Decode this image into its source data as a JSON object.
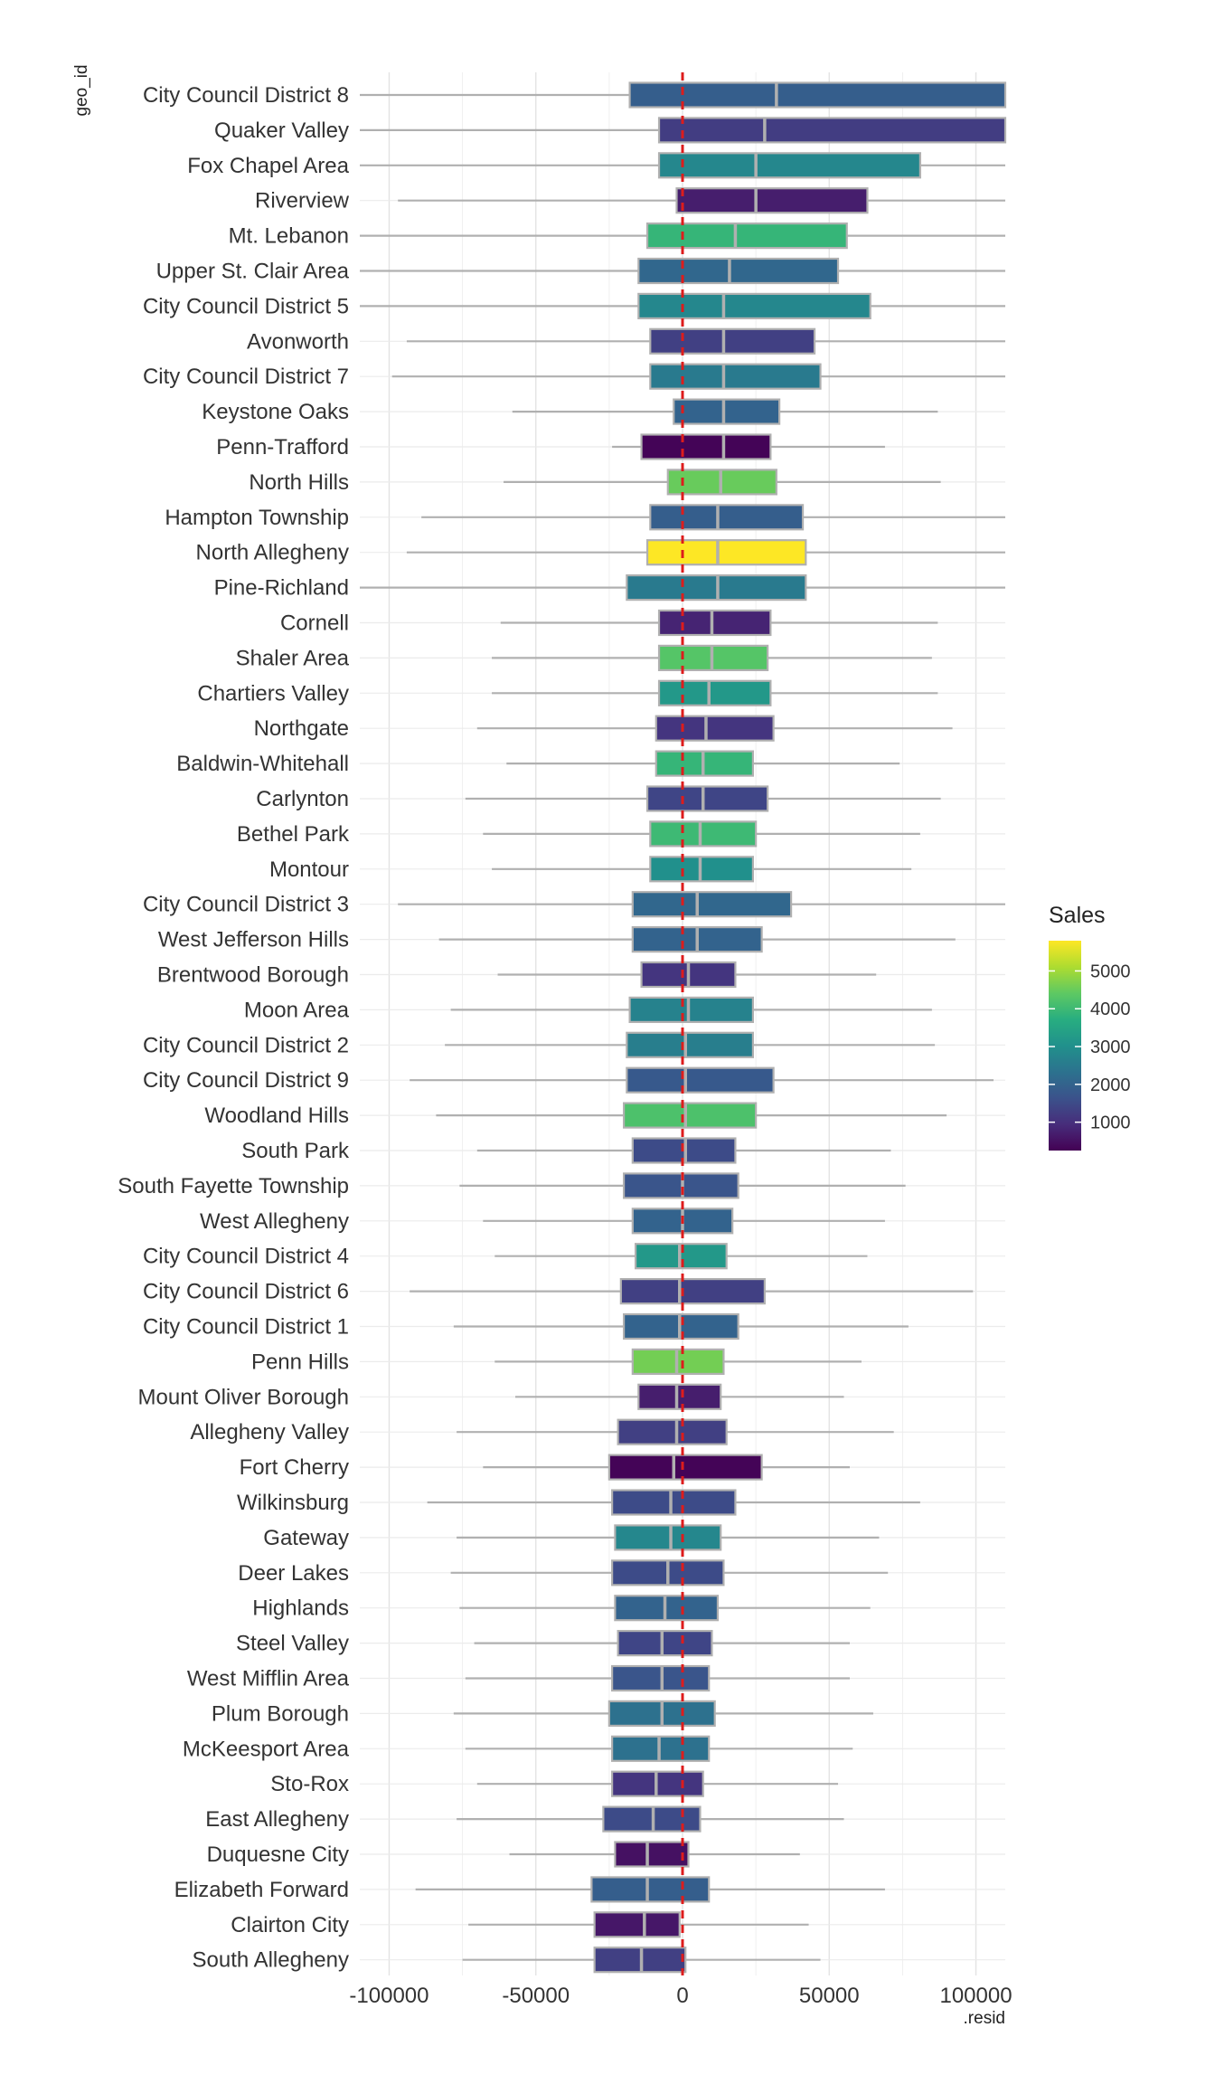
{
  "chart_data": {
    "type": "boxplot",
    "orientation": "horizontal",
    "ylabel": "geo_id",
    "xlabel": ".resid",
    "xlim": [
      -110000,
      110000
    ],
    "xticks": [
      -100000,
      -50000,
      0,
      50000,
      100000
    ],
    "xtick_labels": [
      "-100000",
      "-50000",
      "0",
      "50000",
      "100000"
    ],
    "reference_line": {
      "x": 0,
      "color": "#dd1c1c",
      "style": "dashed"
    },
    "legend": {
      "title": "Sales",
      "position": "right",
      "min": 250,
      "max": 5800,
      "ticks": [
        1000,
        2000,
        3000,
        4000,
        5000
      ],
      "tick_labels": [
        "1000",
        "2000",
        "3000",
        "4000",
        "5000"
      ],
      "palette": "viridis"
    },
    "grid": true,
    "colors": {
      "box_outline": "#b0b0b0",
      "whisker": "#b0b0b0",
      "median": "#b0b0b0",
      "grid": "#e6e6e6"
    },
    "categories": [
      "City Council District 8",
      "Quaker Valley",
      "Fox Chapel Area",
      "Riverview",
      "Mt. Lebanon",
      "Upper St. Clair Area",
      "City Council District 5",
      "Avonworth",
      "City Council District 7",
      "Keystone Oaks",
      "Penn-Trafford",
      "North Hills",
      "Hampton Township",
      "North Allegheny",
      "Pine-Richland",
      "Cornell",
      "Shaler Area",
      "Chartiers Valley",
      "Northgate",
      "Baldwin-Whitehall",
      "Carlynton",
      "Bethel Park",
      "Montour",
      "City Council District 3",
      "West Jefferson Hills",
      "Brentwood Borough",
      "Moon Area",
      "City Council District 2",
      "City Council District 9",
      "Woodland Hills",
      "South Park",
      "South Fayette Township",
      "West Allegheny",
      "City Council District 4",
      "City Council District 6",
      "City Council District 1",
      "Penn Hills",
      "Mount Oliver Borough",
      "Allegheny Valley",
      "Fort Cherry",
      "Wilkinsburg",
      "Gateway",
      "Deer Lakes",
      "Highlands",
      "Steel Valley",
      "West Mifflin Area",
      "Plum Borough",
      "McKeesport Area",
      "Sto-Rox",
      "East Allegheny",
      "Duquesne City",
      "Elizabeth Forward",
      "Clairton City",
      "South Allegheny"
    ],
    "series": [
      {
        "whisker_low": -110000,
        "q1": -18000,
        "median": 32000,
        "q3": 110000,
        "whisker_high": 110000,
        "sales": 1900
      },
      {
        "whisker_low": -110000,
        "q1": -8000,
        "median": 28000,
        "q3": 110000,
        "whisker_high": 110000,
        "sales": 1250
      },
      {
        "whisker_low": -110000,
        "q1": -8000,
        "median": 25000,
        "q3": 81000,
        "whisker_high": 110000,
        "sales": 2800
      },
      {
        "whisker_low": -97000,
        "q1": -2000,
        "median": 25000,
        "q3": 63000,
        "whisker_high": 110000,
        "sales": 700
      },
      {
        "whisker_low": -110000,
        "q1": -12000,
        "median": 18000,
        "q3": 56000,
        "whisker_high": 110000,
        "sales": 3900
      },
      {
        "whisker_low": -110000,
        "q1": -15000,
        "median": 16000,
        "q3": 53000,
        "whisker_high": 110000,
        "sales": 2100
      },
      {
        "whisker_low": -110000,
        "q1": -15000,
        "median": 14000,
        "q3": 64000,
        "whisker_high": 110000,
        "sales": 2800
      },
      {
        "whisker_low": -94000,
        "q1": -11000,
        "median": 14000,
        "q3": 45000,
        "whisker_high": 110000,
        "sales": 1300
      },
      {
        "whisker_low": -99000,
        "q1": -11000,
        "median": 14000,
        "q3": 47000,
        "whisker_high": 110000,
        "sales": 2500
      },
      {
        "whisker_low": -58000,
        "q1": -3000,
        "median": 14000,
        "q3": 33000,
        "whisker_high": 87000,
        "sales": 2000
      },
      {
        "whisker_low": -24000,
        "q1": -14000,
        "median": 14000,
        "q3": 30000,
        "whisker_high": 69000,
        "sales": 300
      },
      {
        "whisker_low": -61000,
        "q1": -5000,
        "median": 13000,
        "q3": 32000,
        "whisker_high": 88000,
        "sales": 4500
      },
      {
        "whisker_low": -89000,
        "q1": -11000,
        "median": 12000,
        "q3": 41000,
        "whisker_high": 110000,
        "sales": 1900
      },
      {
        "whisker_low": -94000,
        "q1": -12000,
        "median": 12000,
        "q3": 42000,
        "whisker_high": 110000,
        "sales": 5800
      },
      {
        "whisker_low": -110000,
        "q1": -19000,
        "median": 12000,
        "q3": 42000,
        "whisker_high": 110000,
        "sales": 2500
      },
      {
        "whisker_low": -62000,
        "q1": -8000,
        "median": 10000,
        "q3": 30000,
        "whisker_high": 87000,
        "sales": 800
      },
      {
        "whisker_low": -65000,
        "q1": -8000,
        "median": 10000,
        "q3": 29000,
        "whisker_high": 85000,
        "sales": 4300
      },
      {
        "whisker_low": -65000,
        "q1": -8000,
        "median": 9000,
        "q3": 30000,
        "whisker_high": 87000,
        "sales": 3200
      },
      {
        "whisker_low": -70000,
        "q1": -9000,
        "median": 8000,
        "q3": 31000,
        "whisker_high": 92000,
        "sales": 1100
      },
      {
        "whisker_low": -60000,
        "q1": -9000,
        "median": 7000,
        "q3": 24000,
        "whisker_high": 74000,
        "sales": 3900
      },
      {
        "whisker_low": -74000,
        "q1": -12000,
        "median": 7000,
        "q3": 29000,
        "whisker_high": 88000,
        "sales": 1400
      },
      {
        "whisker_low": -68000,
        "q1": -11000,
        "median": 6000,
        "q3": 25000,
        "whisker_high": 81000,
        "sales": 4000
      },
      {
        "whisker_low": -65000,
        "q1": -11000,
        "median": 6000,
        "q3": 24000,
        "whisker_high": 78000,
        "sales": 3000
      },
      {
        "whisker_low": -97000,
        "q1": -17000,
        "median": 5000,
        "q3": 37000,
        "whisker_high": 110000,
        "sales": 2100
      },
      {
        "whisker_low": -83000,
        "q1": -17000,
        "median": 5000,
        "q3": 27000,
        "whisker_high": 93000,
        "sales": 2000
      },
      {
        "whisker_low": -63000,
        "q1": -14000,
        "median": 2000,
        "q3": 18000,
        "whisker_high": 66000,
        "sales": 1100
      },
      {
        "whisker_low": -79000,
        "q1": -18000,
        "median": 2000,
        "q3": 24000,
        "whisker_high": 85000,
        "sales": 2700
      },
      {
        "whisker_low": -81000,
        "q1": -19000,
        "median": 1000,
        "q3": 24000,
        "whisker_high": 86000,
        "sales": 2600
      },
      {
        "whisker_low": -93000,
        "q1": -19000,
        "median": 1000,
        "q3": 31000,
        "whisker_high": 106000,
        "sales": 1800
      },
      {
        "whisker_low": -84000,
        "q1": -20000,
        "median": 1000,
        "q3": 25000,
        "whisker_high": 90000,
        "sales": 4200
      },
      {
        "whisker_low": -70000,
        "q1": -17000,
        "median": 1000,
        "q3": 18000,
        "whisker_high": 71000,
        "sales": 1500
      },
      {
        "whisker_low": -76000,
        "q1": -20000,
        "median": 0,
        "q3": 19000,
        "whisker_high": 76000,
        "sales": 1700
      },
      {
        "whisker_low": -68000,
        "q1": -17000,
        "median": 0,
        "q3": 17000,
        "whisker_high": 69000,
        "sales": 2000
      },
      {
        "whisker_low": -64000,
        "q1": -16000,
        "median": -1000,
        "q3": 15000,
        "whisker_high": 63000,
        "sales": 3200
      },
      {
        "whisker_low": -93000,
        "q1": -21000,
        "median": -1000,
        "q3": 28000,
        "whisker_high": 99000,
        "sales": 1300
      },
      {
        "whisker_low": -78000,
        "q1": -20000,
        "median": -1000,
        "q3": 19000,
        "whisker_high": 77000,
        "sales": 2000
      },
      {
        "whisker_low": -64000,
        "q1": -17000,
        "median": -2000,
        "q3": 14000,
        "whisker_high": 61000,
        "sales": 4600
      },
      {
        "whisker_low": -57000,
        "q1": -15000,
        "median": -2000,
        "q3": 13000,
        "whisker_high": 55000,
        "sales": 700
      },
      {
        "whisker_low": -77000,
        "q1": -22000,
        "median": -2000,
        "q3": 15000,
        "whisker_high": 72000,
        "sales": 1300
      },
      {
        "whisker_low": -68000,
        "q1": -25000,
        "median": -3000,
        "q3": 27000,
        "whisker_high": 57000,
        "sales": 300
      },
      {
        "whisker_low": -87000,
        "q1": -24000,
        "median": -4000,
        "q3": 18000,
        "whisker_high": 81000,
        "sales": 1500
      },
      {
        "whisker_low": -77000,
        "q1": -23000,
        "median": -4000,
        "q3": 13000,
        "whisker_high": 67000,
        "sales": 2800
      },
      {
        "whisker_low": -79000,
        "q1": -24000,
        "median": -5000,
        "q3": 14000,
        "whisker_high": 70000,
        "sales": 1500
      },
      {
        "whisker_low": -76000,
        "q1": -23000,
        "median": -6000,
        "q3": 12000,
        "whisker_high": 64000,
        "sales": 2000
      },
      {
        "whisker_low": -71000,
        "q1": -22000,
        "median": -7000,
        "q3": 10000,
        "whisker_high": 57000,
        "sales": 1400
      },
      {
        "whisker_low": -74000,
        "q1": -24000,
        "median": -7000,
        "q3": 9000,
        "whisker_high": 57000,
        "sales": 1700
      },
      {
        "whisker_low": -78000,
        "q1": -25000,
        "median": -7000,
        "q3": 11000,
        "whisker_high": 65000,
        "sales": 2300
      },
      {
        "whisker_low": -74000,
        "q1": -24000,
        "median": -8000,
        "q3": 9000,
        "whisker_high": 58000,
        "sales": 2300
      },
      {
        "whisker_low": -70000,
        "q1": -24000,
        "median": -9000,
        "q3": 7000,
        "whisker_high": 53000,
        "sales": 1100
      },
      {
        "whisker_low": -77000,
        "q1": -27000,
        "median": -10000,
        "q3": 6000,
        "whisker_high": 55000,
        "sales": 1500
      },
      {
        "whisker_low": -59000,
        "q1": -23000,
        "median": -12000,
        "q3": 2000,
        "whisker_high": 40000,
        "sales": 500
      },
      {
        "whisker_low": -91000,
        "q1": -31000,
        "median": -12000,
        "q3": 9000,
        "whisker_high": 69000,
        "sales": 1900
      },
      {
        "whisker_low": -73000,
        "q1": -30000,
        "median": -13000,
        "q3": -1000,
        "whisker_high": 43000,
        "sales": 600
      },
      {
        "whisker_low": -75000,
        "q1": -30000,
        "median": -14000,
        "q3": 1000,
        "whisker_high": 47000,
        "sales": 1300
      }
    ]
  }
}
